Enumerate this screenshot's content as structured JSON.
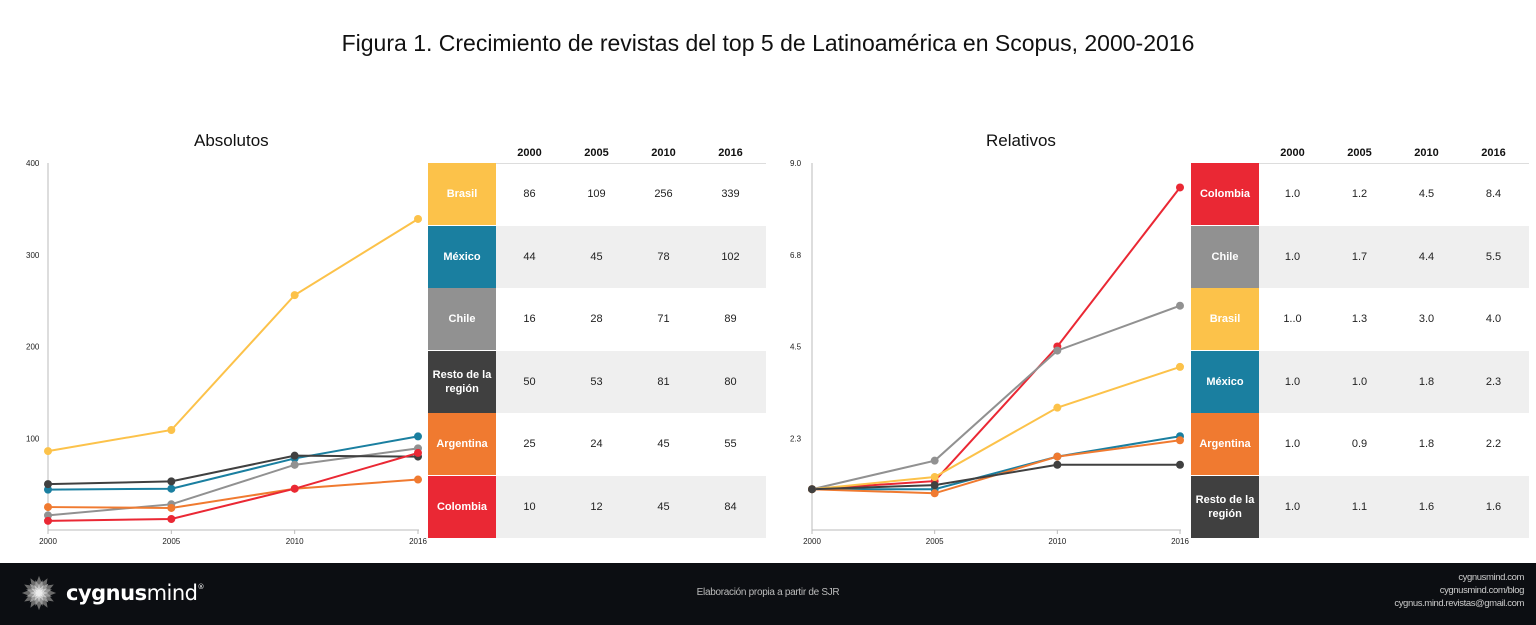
{
  "title": "Figura 1. Crecimiento de revistas del top 5 de Latinoamérica en Scopus, 2000-2016",
  "chart_data": [
    {
      "type": "line",
      "title": "Absolutos",
      "x": [
        "2000",
        "2005",
        "2010",
        "2016"
      ],
      "ylim": [
        0,
        400
      ],
      "yticks": [
        "100",
        "200",
        "300",
        "400"
      ],
      "ytick_values": [
        100,
        200,
        300,
        400
      ],
      "grid": false,
      "legend": "right (table)",
      "series": [
        {
          "name": "Brasil",
          "color": "#FCC24A",
          "values": [
            86,
            109,
            256,
            339
          ]
        },
        {
          "name": "México",
          "color": "#1A7FA0",
          "values": [
            44,
            45,
            78,
            102
          ]
        },
        {
          "name": "Chile",
          "color": "#919191",
          "values": [
            16,
            28,
            71,
            89
          ]
        },
        {
          "name": "Resto de la región",
          "color": "#404040",
          "values": [
            50,
            53,
            81,
            80
          ]
        },
        {
          "name": "Argentina",
          "color": "#F07A30",
          "values": [
            25,
            24,
            45,
            55
          ]
        },
        {
          "name": "Colombia",
          "color": "#EA2834",
          "values": [
            10,
            12,
            45,
            84
          ]
        }
      ],
      "table": {
        "headers": [
          "2000",
          "2005",
          "2010",
          "2016"
        ],
        "rows": [
          {
            "label": "Brasil",
            "color": "#FCC24A",
            "cells": [
              "86",
              "109",
              "256",
              "339"
            ]
          },
          {
            "label": "México",
            "color": "#1A7FA0",
            "cells": [
              "44",
              "45",
              "78",
              "102"
            ]
          },
          {
            "label": "Chile",
            "color": "#919191",
            "cells": [
              "16",
              "28",
              "71",
              "89"
            ]
          },
          {
            "label": "Resto de la región",
            "color": "#404040",
            "cells": [
              "50",
              "53",
              "81",
              "80"
            ]
          },
          {
            "label": "Argentina",
            "color": "#F07A30",
            "cells": [
              "25",
              "24",
              "45",
              "55"
            ]
          },
          {
            "label": "Colombia",
            "color": "#EA2834",
            "cells": [
              "10",
              "12",
              "45",
              "84"
            ]
          }
        ]
      }
    },
    {
      "type": "line",
      "title": "Relativos",
      "x": [
        "2000",
        "2005",
        "2010",
        "2016"
      ],
      "ylim": [
        0,
        9.0
      ],
      "yticks": [
        "2.3",
        "4.5",
        "6.8",
        "9.0"
      ],
      "ytick_values": [
        2.25,
        4.5,
        6.75,
        9.0
      ],
      "grid": false,
      "legend": "right (table)",
      "series": [
        {
          "name": "Colombia",
          "color": "#EA2834",
          "values": [
            1.0,
            1.2,
            4.5,
            8.4
          ]
        },
        {
          "name": "Chile",
          "color": "#919191",
          "values": [
            1.0,
            1.7,
            4.4,
            5.5
          ]
        },
        {
          "name": "Brasil",
          "color": "#FCC24A",
          "values": [
            1.0,
            1.3,
            3.0,
            4.0
          ]
        },
        {
          "name": "México",
          "color": "#1A7FA0",
          "values": [
            1.0,
            1.0,
            1.8,
            2.3
          ]
        },
        {
          "name": "Argentina",
          "color": "#F07A30",
          "values": [
            1.0,
            0.9,
            1.8,
            2.2
          ]
        },
        {
          "name": "Resto de la región",
          "color": "#404040",
          "values": [
            1.0,
            1.1,
            1.6,
            1.6
          ]
        }
      ],
      "table": {
        "headers": [
          "2000",
          "2005",
          "2010",
          "2016"
        ],
        "rows": [
          {
            "label": "Colombia",
            "color": "#EA2834",
            "cells": [
              "1.0",
              "1.2",
              "4.5",
              "8.4"
            ]
          },
          {
            "label": "Chile",
            "color": "#919191",
            "cells": [
              "1.0",
              "1.7",
              "4.4",
              "5.5"
            ]
          },
          {
            "label": "Brasil",
            "color": "#FCC24A",
            "cells": [
              "1..0",
              "1.3",
              "3.0",
              "4.0"
            ]
          },
          {
            "label": "México",
            "color": "#1A7FA0",
            "cells": [
              "1.0",
              "1.0",
              "1.8",
              "2.3"
            ]
          },
          {
            "label": "Argentina",
            "color": "#F07A30",
            "cells": [
              "1.0",
              "0.9",
              "1.8",
              "2.2"
            ]
          },
          {
            "label": "Resto de la región",
            "color": "#404040",
            "cells": [
              "1.0",
              "1.1",
              "1.6",
              "1.6"
            ]
          }
        ]
      }
    }
  ],
  "footer": {
    "brand_bold": "cygnus",
    "brand_light": "mind",
    "brand_mark": "®",
    "logo_icon": "starburst-logo-icon",
    "source": "Elaboración propia a partir de SJR",
    "links": [
      "cygnusmind.com",
      "cygnusmind.com/blog",
      "cygnus.mind.revistas@gmail.com"
    ]
  }
}
